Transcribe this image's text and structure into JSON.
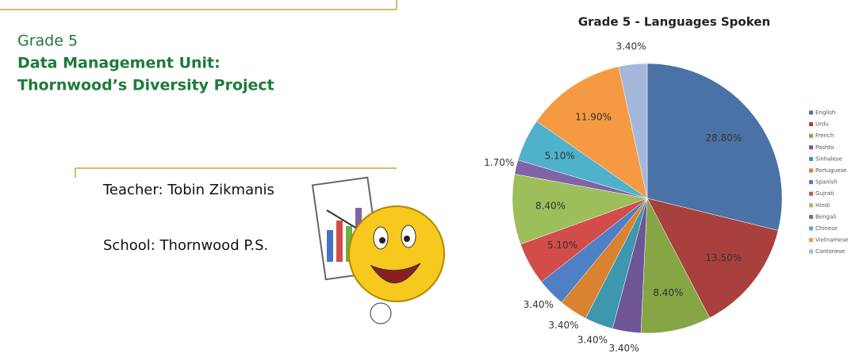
{
  "slide": {
    "grade": "Grade 5",
    "unit": "Data Management Unit:",
    "project": "Thornwood’s Diversity Project",
    "teacher": "Teacher: Tobin Zikmanis",
    "school": "School: Thornwood P.S."
  },
  "chart_data": {
    "type": "pie",
    "title": "Grade 5 - Languages Spoken",
    "categories": [
      "English",
      "Urdu",
      "French",
      "Pashto",
      "Sinhalese",
      "Portuguese",
      "Spanish",
      "Gujrati",
      "Hindi",
      "Bengali",
      "Chinese",
      "Vietnamese",
      "Cantonese"
    ],
    "values": [
      28.8,
      13.5,
      8.4,
      3.4,
      3.4,
      3.4,
      3.4,
      5.1,
      8.4,
      1.7,
      5.1,
      11.9,
      3.4
    ],
    "value_labels": [
      "28.80%",
      "13.50%",
      "8.40%",
      "3.40%",
      "3.40%",
      "3.40%",
      "3.40%",
      "5.10%",
      "8.40%",
      "1.70%",
      "5.10%",
      "11.90%",
      "3.40%"
    ],
    "colors": [
      "#4a72a6",
      "#a8403d",
      "#86a545",
      "#6e5595",
      "#3d97ae",
      "#d9822f",
      "#4f7fc4",
      "#d24d4a",
      "#9cbe5b",
      "#7f64a8",
      "#4fb1cc",
      "#f59a42",
      "#a5b8db"
    ],
    "legend": "right"
  }
}
